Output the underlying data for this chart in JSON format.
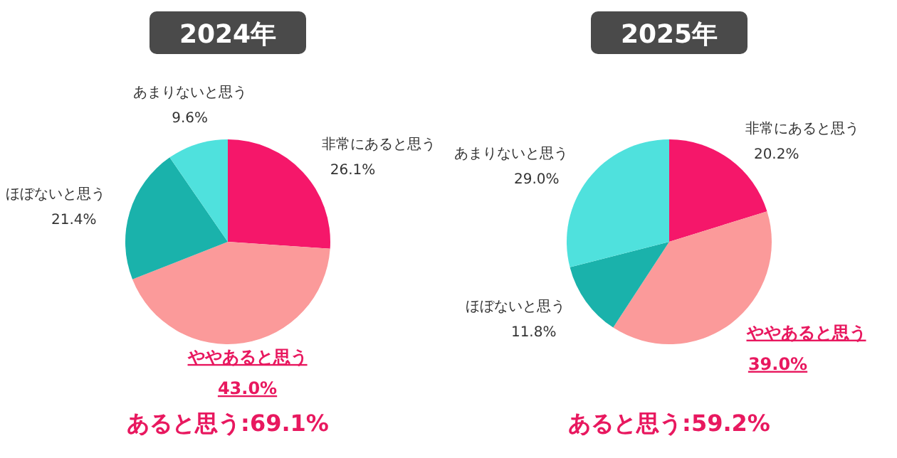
{
  "chart_data": [
    {
      "type": "pie",
      "title": "2024年",
      "categories": [
        "非常にあると思う",
        "ややあると思う",
        "ほぼないと思う",
        "あまりないと思う"
      ],
      "values": [
        26.1,
        43.0,
        21.4,
        9.6
      ],
      "value_labels": [
        "26.1%",
        "43.0%",
        "21.4%",
        "9.6%"
      ],
      "colors": [
        "#f5176a",
        "#fb9a9a",
        "#1ab2ab",
        "#4fe1dd"
      ],
      "annotations": [
        "あると思う:69.1%"
      ]
    },
    {
      "type": "pie",
      "title": "2025年",
      "categories": [
        "非常にあると思う",
        "ややあると思う",
        "ほぼないと思う",
        "あまりないと思う"
      ],
      "values": [
        20.2,
        39.0,
        11.8,
        29.0
      ],
      "value_labels": [
        "20.2%",
        "39.0%",
        "11.8%",
        "29.0%"
      ],
      "colors": [
        "#f5176a",
        "#fb9a9a",
        "#1ab2ab",
        "#4fe1dd"
      ],
      "annotations": [
        "あると思う:59.2%"
      ]
    }
  ]
}
